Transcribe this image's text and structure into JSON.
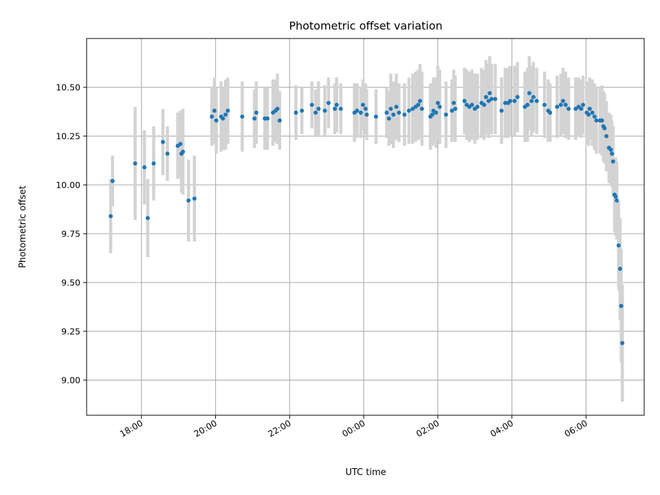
{
  "chart_data": {
    "type": "scatter",
    "title": "Photometric offset variation",
    "xlabel": "UTC time",
    "ylabel": "Photometric offset",
    "x_unit": "hours",
    "xlim": [
      16.52,
      31.57
    ],
    "ylim": [
      8.82,
      10.75
    ],
    "grid": true,
    "marker_color": "#1f77b4",
    "errorbar_color": "#d3d3d3",
    "x_ticks": [
      {
        "value": 18,
        "label": "18:00"
      },
      {
        "value": 20,
        "label": "20:00"
      },
      {
        "value": 22,
        "label": "22:00"
      },
      {
        "value": 24,
        "label": "00:00"
      },
      {
        "value": 26,
        "label": "02:00"
      },
      {
        "value": 28,
        "label": "04:00"
      },
      {
        "value": 30,
        "label": "06:00"
      }
    ],
    "y_ticks": [
      {
        "value": 9.0,
        "label": "9.00"
      },
      {
        "value": 9.25,
        "label": "9.25"
      },
      {
        "value": 9.5,
        "label": "9.50"
      },
      {
        "value": 9.75,
        "label": "9.75"
      },
      {
        "value": 10.0,
        "label": "10.00"
      },
      {
        "value": 10.25,
        "label": "10.25"
      },
      {
        "value": 10.5,
        "label": "10.50"
      }
    ],
    "points": [
      [
        17.17,
        9.84,
        0.19
      ],
      [
        17.22,
        10.02,
        0.13
      ],
      [
        17.83,
        10.11,
        0.29
      ],
      [
        18.08,
        10.09,
        0.19
      ],
      [
        18.17,
        9.83,
        0.2
      ],
      [
        18.33,
        10.11,
        0.19
      ],
      [
        18.58,
        10.22,
        0.17
      ],
      [
        18.7,
        10.16,
        0.14
      ],
      [
        18.98,
        10.2,
        0.17
      ],
      [
        19.05,
        10.21,
        0.17
      ],
      [
        19.08,
        10.16,
        0.2
      ],
      [
        19.12,
        10.17,
        0.22
      ],
      [
        19.27,
        9.92,
        0.21
      ],
      [
        19.43,
        9.93,
        0.22
      ],
      [
        19.9,
        10.35,
        0.15
      ],
      [
        19.97,
        10.38,
        0.17
      ],
      [
        20.02,
        10.33,
        0.17
      ],
      [
        20.15,
        10.35,
        0.18
      ],
      [
        20.2,
        10.34,
        0.16
      ],
      [
        20.27,
        10.36,
        0.18
      ],
      [
        20.33,
        10.38,
        0.17
      ],
      [
        20.72,
        10.35,
        0.18
      ],
      [
        21.05,
        10.34,
        0.15
      ],
      [
        21.1,
        10.37,
        0.16
      ],
      [
        21.33,
        10.34,
        0.16
      ],
      [
        21.4,
        10.34,
        0.16
      ],
      [
        21.55,
        10.37,
        0.17
      ],
      [
        21.62,
        10.38,
        0.16
      ],
      [
        21.67,
        10.39,
        0.18
      ],
      [
        21.73,
        10.33,
        0.15
      ],
      [
        22.17,
        10.37,
        0.14
      ],
      [
        22.33,
        10.38,
        0.12
      ],
      [
        22.6,
        10.41,
        0.12
      ],
      [
        22.7,
        10.37,
        0.12
      ],
      [
        22.78,
        10.39,
        0.14
      ],
      [
        22.95,
        10.38,
        0.13
      ],
      [
        23.05,
        10.42,
        0.13
      ],
      [
        23.22,
        10.39,
        0.13
      ],
      [
        23.27,
        10.41,
        0.14
      ],
      [
        23.38,
        10.39,
        0.13
      ],
      [
        23.75,
        10.37,
        0.15
      ],
      [
        23.82,
        10.38,
        0.14
      ],
      [
        23.92,
        10.37,
        0.13
      ],
      [
        23.98,
        10.41,
        0.13
      ],
      [
        24.05,
        10.39,
        0.13
      ],
      [
        24.08,
        10.36,
        0.13
      ],
      [
        24.33,
        10.35,
        0.14
      ],
      [
        24.62,
        10.37,
        0.13
      ],
      [
        24.68,
        10.34,
        0.14
      ],
      [
        24.73,
        10.39,
        0.18
      ],
      [
        24.8,
        10.36,
        0.17
      ],
      [
        24.88,
        10.4,
        0.17
      ],
      [
        24.95,
        10.37,
        0.15
      ],
      [
        25.1,
        10.36,
        0.16
      ],
      [
        25.22,
        10.38,
        0.17
      ],
      [
        25.32,
        10.39,
        0.18
      ],
      [
        25.4,
        10.4,
        0.18
      ],
      [
        25.47,
        10.41,
        0.18
      ],
      [
        25.52,
        10.43,
        0.19
      ],
      [
        25.57,
        10.39,
        0.19
      ],
      [
        25.8,
        10.35,
        0.17
      ],
      [
        25.85,
        10.36,
        0.16
      ],
      [
        25.88,
        10.38,
        0.17
      ],
      [
        25.95,
        10.37,
        0.18
      ],
      [
        26.0,
        10.42,
        0.19
      ],
      [
        26.05,
        10.4,
        0.19
      ],
      [
        26.22,
        10.36,
        0.17
      ],
      [
        26.38,
        10.38,
        0.16
      ],
      [
        26.43,
        10.42,
        0.17
      ],
      [
        26.47,
        10.39,
        0.17
      ],
      [
        26.72,
        10.43,
        0.17
      ],
      [
        26.78,
        10.41,
        0.18
      ],
      [
        26.85,
        10.4,
        0.18
      ],
      [
        26.92,
        10.41,
        0.18
      ],
      [
        27.0,
        10.39,
        0.18
      ],
      [
        27.07,
        10.4,
        0.17
      ],
      [
        27.18,
        10.42,
        0.18
      ],
      [
        27.25,
        10.41,
        0.18
      ],
      [
        27.3,
        10.45,
        0.19
      ],
      [
        27.37,
        10.43,
        0.19
      ],
      [
        27.4,
        10.47,
        0.19
      ],
      [
        27.45,
        10.44,
        0.18
      ],
      [
        27.55,
        10.44,
        0.18
      ],
      [
        27.72,
        10.38,
        0.17
      ],
      [
        27.82,
        10.42,
        0.18
      ],
      [
        27.9,
        10.42,
        0.18
      ],
      [
        27.95,
        10.43,
        0.18
      ],
      [
        28.07,
        10.43,
        0.18
      ],
      [
        28.15,
        10.45,
        0.18
      ],
      [
        28.35,
        10.4,
        0.18
      ],
      [
        28.42,
        10.41,
        0.19
      ],
      [
        28.47,
        10.47,
        0.19
      ],
      [
        28.53,
        10.43,
        0.18
      ],
      [
        28.58,
        10.45,
        0.18
      ],
      [
        28.67,
        10.43,
        0.17
      ],
      [
        28.88,
        10.41,
        0.17
      ],
      [
        28.98,
        10.38,
        0.16
      ],
      [
        29.03,
        10.37,
        0.15
      ],
      [
        29.22,
        10.4,
        0.16
      ],
      [
        29.32,
        10.41,
        0.16
      ],
      [
        29.38,
        10.43,
        0.17
      ],
      [
        29.45,
        10.41,
        0.17
      ],
      [
        29.53,
        10.39,
        0.16
      ],
      [
        29.72,
        10.39,
        0.16
      ],
      [
        29.8,
        10.4,
        0.15
      ],
      [
        29.87,
        10.39,
        0.15
      ],
      [
        29.92,
        10.41,
        0.15
      ],
      [
        30.02,
        10.37,
        0.16
      ],
      [
        30.07,
        10.36,
        0.16
      ],
      [
        30.1,
        10.39,
        0.16
      ],
      [
        30.17,
        10.37,
        0.17
      ],
      [
        30.23,
        10.35,
        0.17
      ],
      [
        30.28,
        10.33,
        0.17
      ],
      [
        30.38,
        10.33,
        0.17
      ],
      [
        30.43,
        10.33,
        0.18
      ],
      [
        30.47,
        10.3,
        0.18
      ],
      [
        30.5,
        10.29,
        0.18
      ],
      [
        30.55,
        10.25,
        0.18
      ],
      [
        30.62,
        10.19,
        0.18
      ],
      [
        30.67,
        10.18,
        0.18
      ],
      [
        30.7,
        10.16,
        0.17
      ],
      [
        30.73,
        10.12,
        0.18
      ],
      [
        30.77,
        9.95,
        0.19
      ],
      [
        30.8,
        9.94,
        0.2
      ],
      [
        30.83,
        9.92,
        0.2
      ],
      [
        30.88,
        9.69,
        0.23
      ],
      [
        30.92,
        9.57,
        0.26
      ],
      [
        30.95,
        9.38,
        0.29
      ],
      [
        30.98,
        9.19,
        0.3
      ]
    ]
  }
}
